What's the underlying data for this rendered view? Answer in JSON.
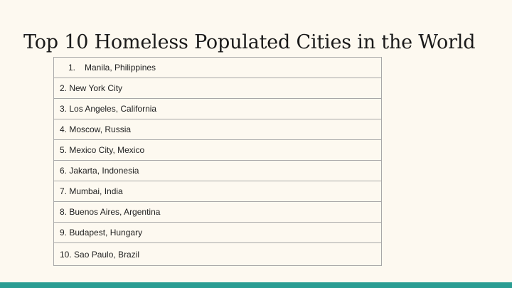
{
  "slide": {
    "title": "Top 10 Homeless Populated Cities in the World",
    "first_item": {
      "number": "1.",
      "name": "Manila, Philippines"
    },
    "items": [
      "2. New York City",
      "3. Los Angeles, California",
      "4. Moscow, Russia",
      "5. Mexico City, Mexico",
      "6. Jakarta, Indonesia",
      "7. Mumbai, India",
      "8. Buenos Aires, Argentina",
      "9. Budapest, Hungary",
      "10. Sao Paulo, Brazil"
    ]
  },
  "colors": {
    "background": "#fdf9f0",
    "accent_bar": "#2a9d92",
    "table_border": "#a8a8a8"
  }
}
